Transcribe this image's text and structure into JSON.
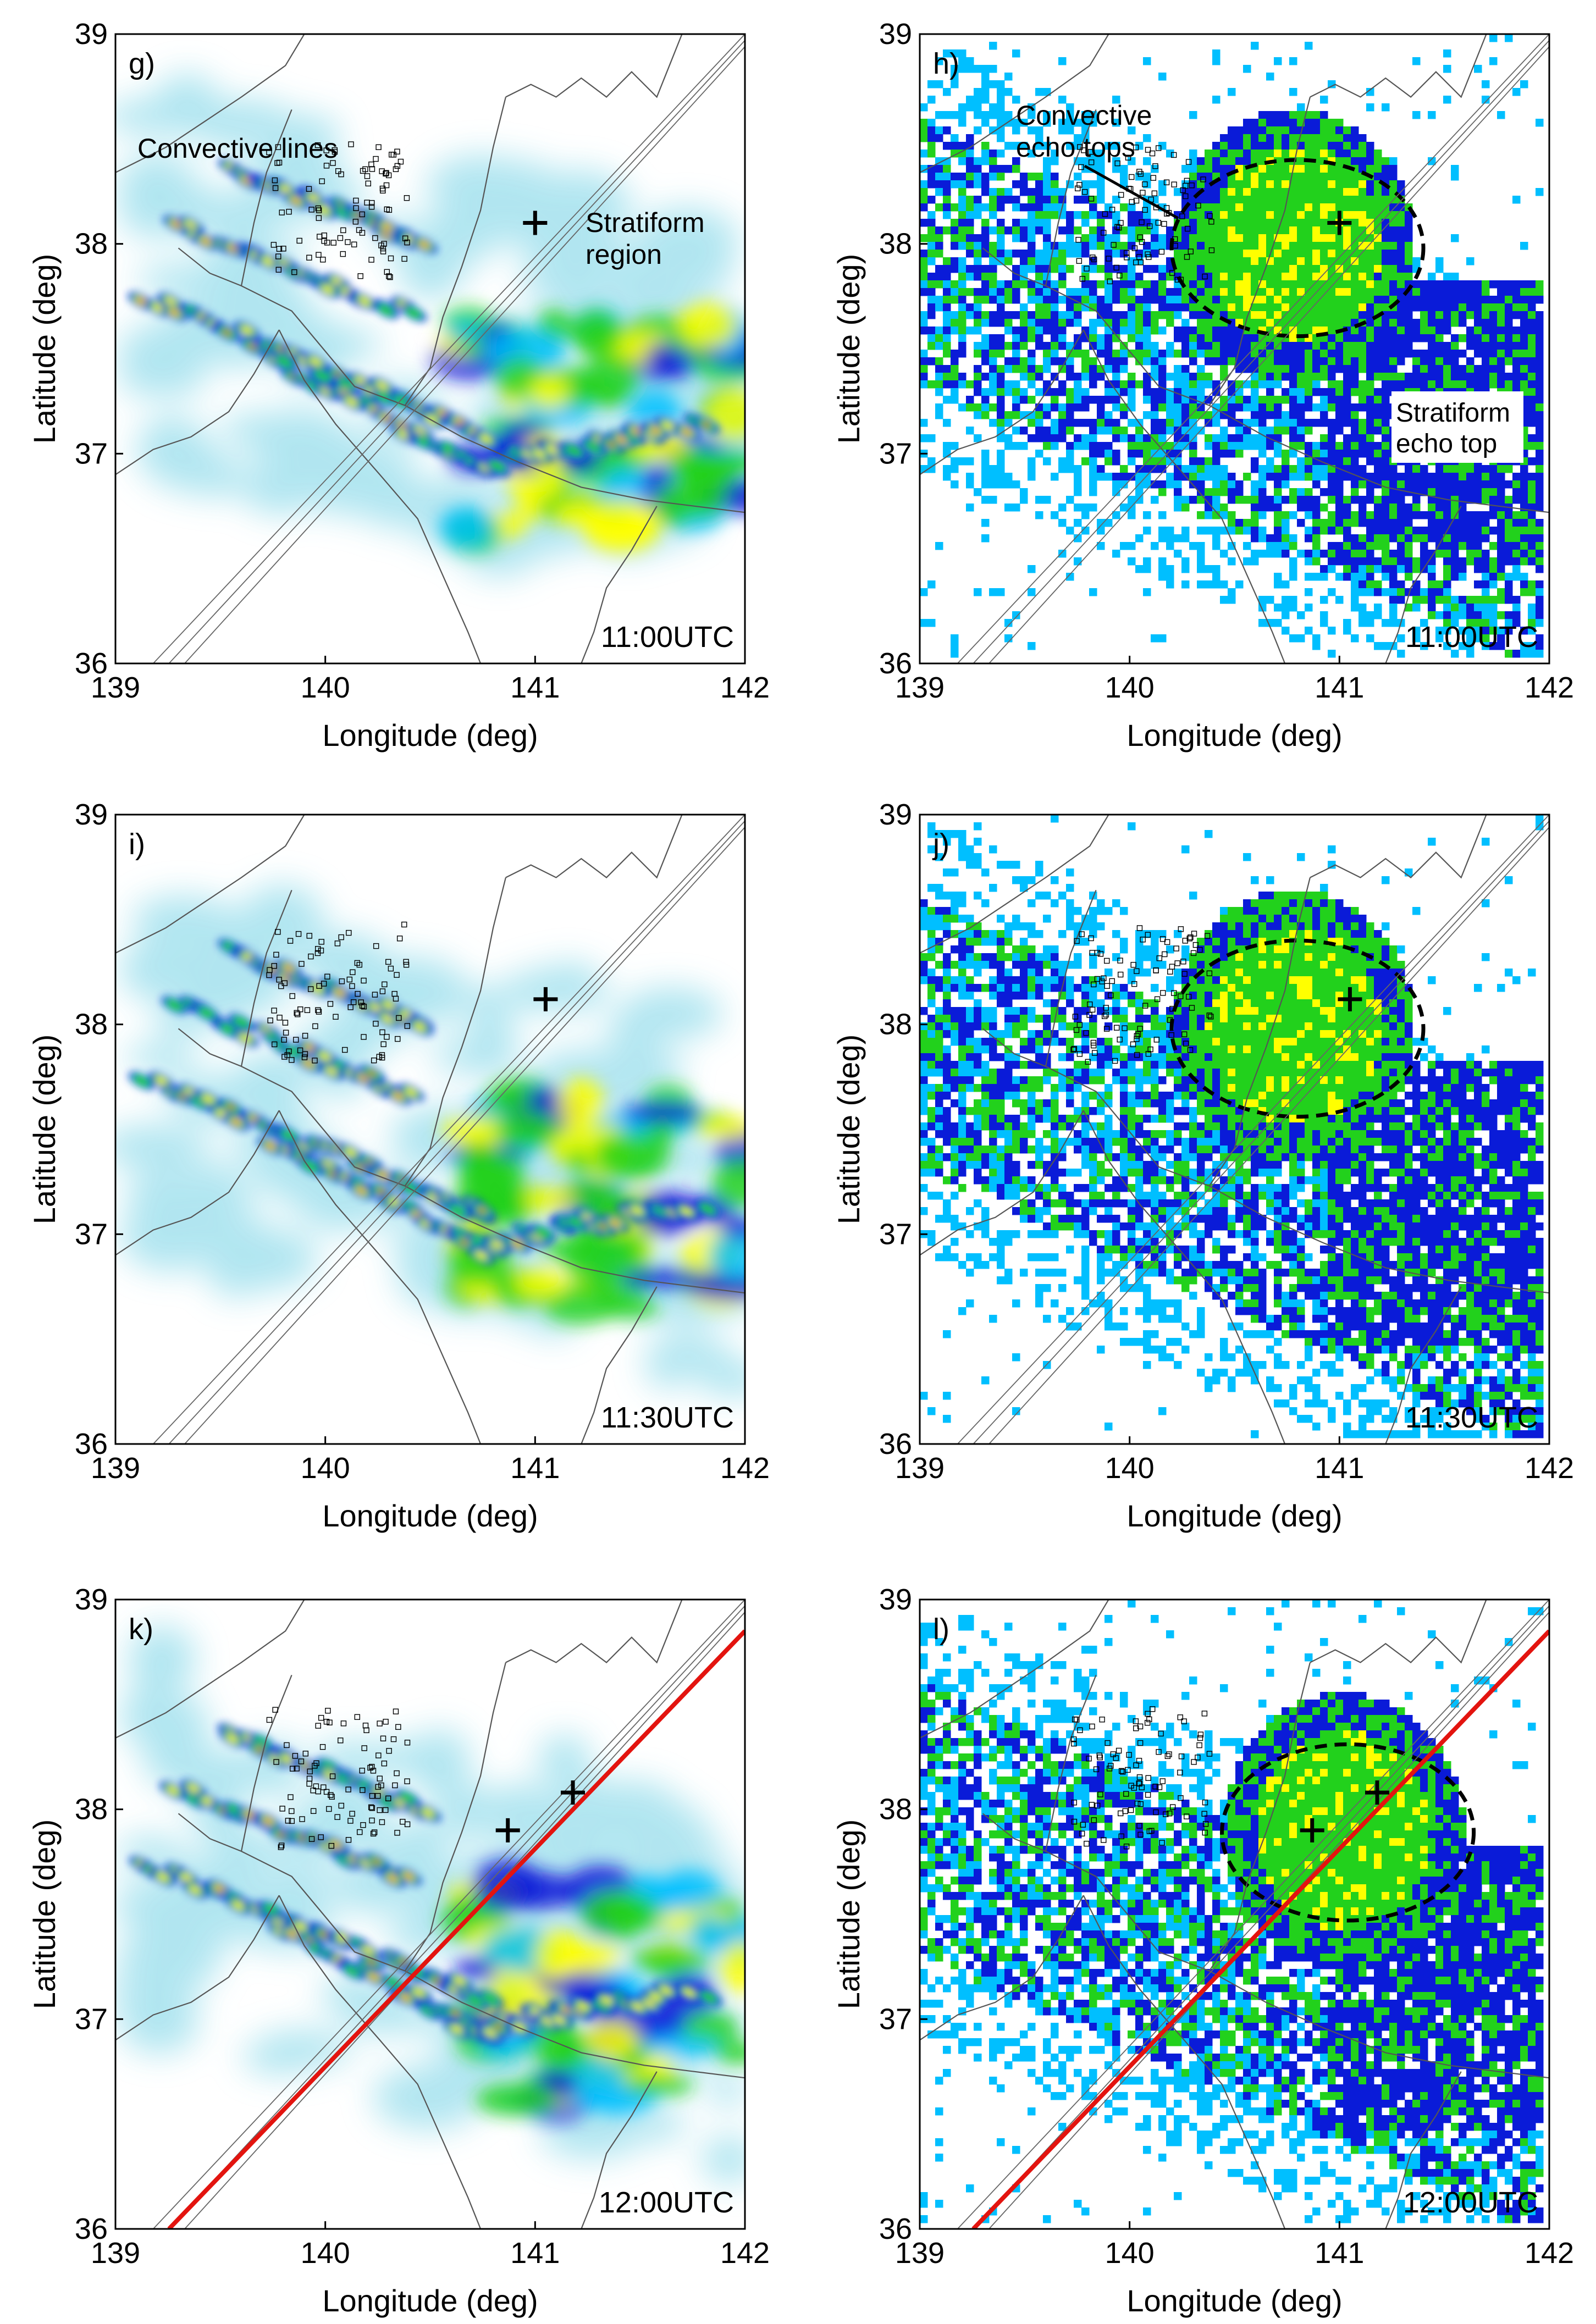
{
  "figure": {
    "axes": {
      "xlabel": "Longitude (deg)",
      "ylabel": "Latitude (deg)",
      "xlim": [
        139,
        142
      ],
      "ylim": [
        36,
        39
      ],
      "xticks": [
        "139",
        "140",
        "141",
        "142"
      ],
      "yticks": [
        "36",
        "37",
        "38",
        "39"
      ]
    },
    "colors": {
      "light_cyan": "#a9e3ef",
      "cyan": "#00bfff",
      "blue": "#0a1bd8",
      "green": "#22d11c",
      "yellow": "#ffff00",
      "orange": "#ff7f00",
      "red": "#ff1100",
      "track_red": "#e3140f",
      "boundary": "#555555"
    },
    "panels": [
      {
        "id": "g",
        "label": "g)",
        "kind": "reflectivity",
        "time": "11:00UTC",
        "annotations": [
          "Convective lines",
          "Stratiform region"
        ],
        "markers": [
          {
            "lon": 141.0,
            "lat": 38.1
          }
        ],
        "red_track": false
      },
      {
        "id": "h",
        "label": "h)",
        "kind": "echo-top",
        "time": "11:00UTC",
        "annotations": [
          "Convective echo tops",
          "Stratiform echo top"
        ],
        "markers": [
          {
            "lon": 141.0,
            "lat": 38.1
          }
        ],
        "red_track": false
      },
      {
        "id": "i",
        "label": "i)",
        "kind": "reflectivity",
        "time": "11:30UTC",
        "annotations": [],
        "markers": [
          {
            "lon": 141.05,
            "lat": 38.12
          }
        ],
        "red_track": false
      },
      {
        "id": "j",
        "label": "j)",
        "kind": "echo-top",
        "time": "11:30UTC",
        "annotations": [],
        "markers": [
          {
            "lon": 141.05,
            "lat": 38.12
          }
        ],
        "red_track": false
      },
      {
        "id": "k",
        "label": "k)",
        "kind": "reflectivity",
        "time": "12:00UTC",
        "annotations": [],
        "markers": [
          {
            "lon": 140.87,
            "lat": 37.9
          },
          {
            "lon": 141.18,
            "lat": 38.08
          }
        ],
        "red_track": true
      },
      {
        "id": "l",
        "label": "l)",
        "kind": "echo-top",
        "time": "12:00UTC",
        "annotations": [],
        "markers": [
          {
            "lon": 140.87,
            "lat": 37.9
          },
          {
            "lon": 141.18,
            "lat": 38.08
          }
        ],
        "red_track": true
      }
    ]
  }
}
